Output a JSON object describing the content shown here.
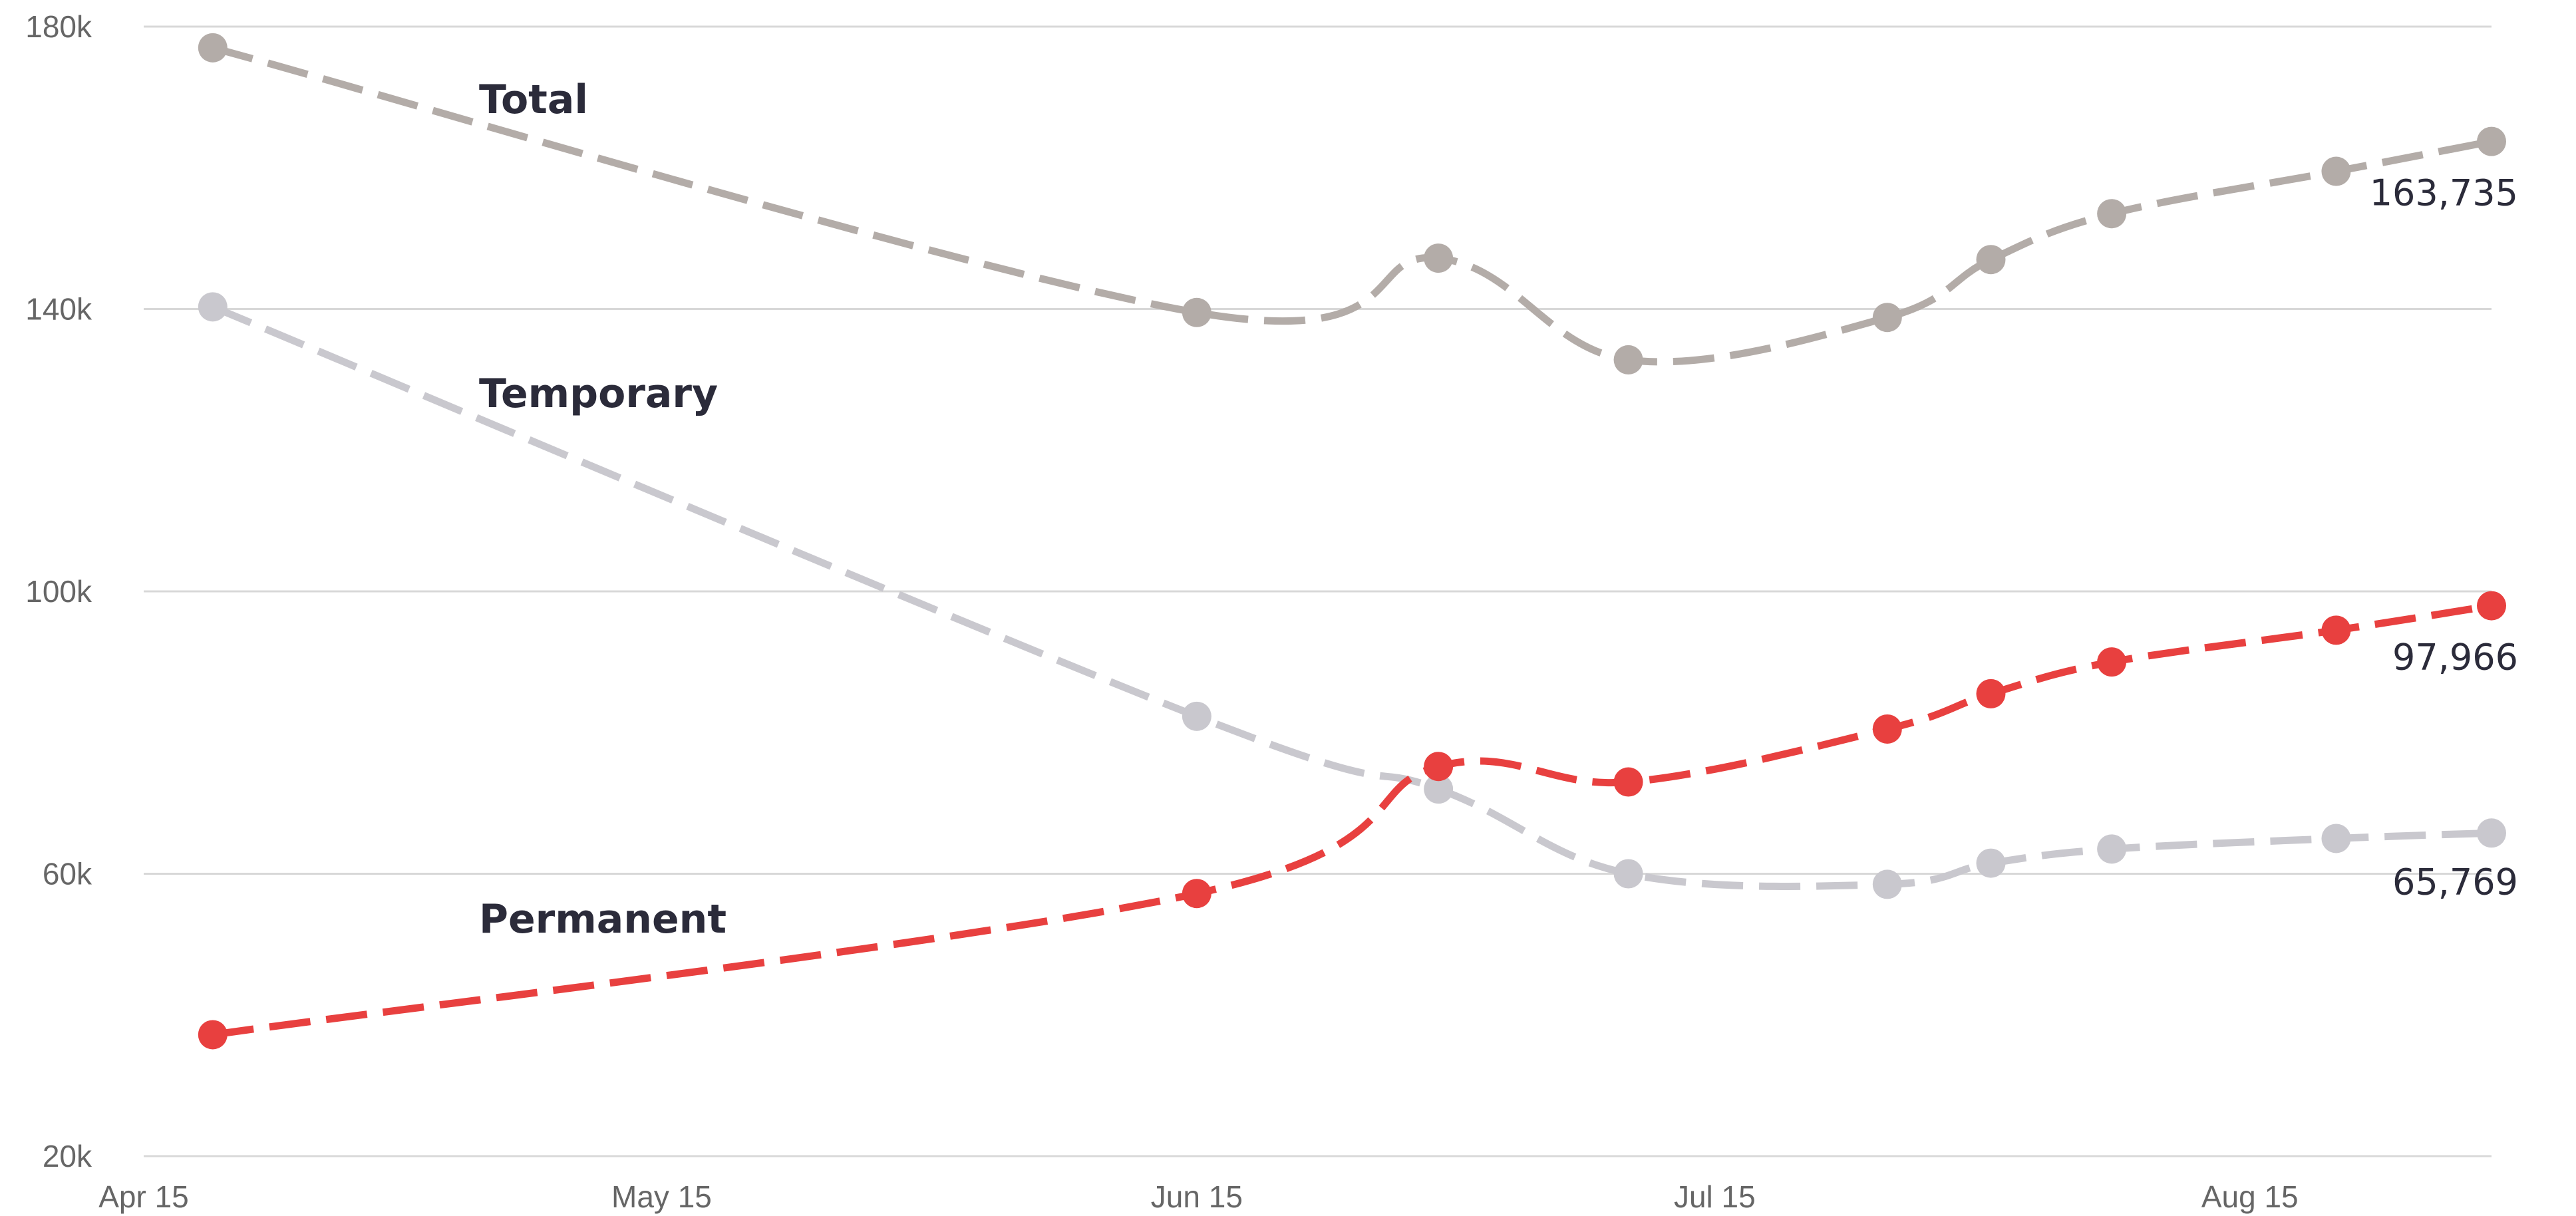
{
  "chart_data": {
    "type": "line",
    "title": "",
    "xlabel": "",
    "ylabel": "",
    "x_ticks": [
      "Apr 15",
      "May 15",
      "Jun 15",
      "Jul 15",
      "Aug 15"
    ],
    "x_tick_dates": [
      "2020-04-15",
      "2020-05-15",
      "2020-06-15",
      "2020-07-15",
      "2020-08-15"
    ],
    "y_ticks": [
      "20k",
      "60k",
      "100k",
      "140k",
      "180k"
    ],
    "ylim": [
      20000,
      180000
    ],
    "xlim": [
      "2020-04-15",
      "2020-08-24"
    ],
    "grid": true,
    "legend": "inline labels",
    "x": [
      "2020-04-19",
      "2020-06-15",
      "2020-06-29",
      "2020-07-10",
      "2020-07-25",
      "2020-07-31",
      "2020-08-07",
      "2020-08-20",
      "2020-08-29"
    ],
    "series": [
      {
        "name": "Total",
        "color": "#b3aca8",
        "values": [
          177000,
          139500,
          147200,
          132800,
          138800,
          147000,
          153500,
          159500,
          163735
        ],
        "end_label": "163,735"
      },
      {
        "name": "Temporary",
        "color": "#c9c8ce",
        "values": [
          140300,
          82300,
          72000,
          60000,
          58500,
          61500,
          63500,
          65000,
          65769
        ],
        "end_label": "65,769"
      },
      {
        "name": "Permanent",
        "color": "#e8403f",
        "values": [
          37200,
          57200,
          75200,
          73000,
          80500,
          85500,
          90000,
          94500,
          97966
        ],
        "end_label": "97,966"
      }
    ]
  }
}
